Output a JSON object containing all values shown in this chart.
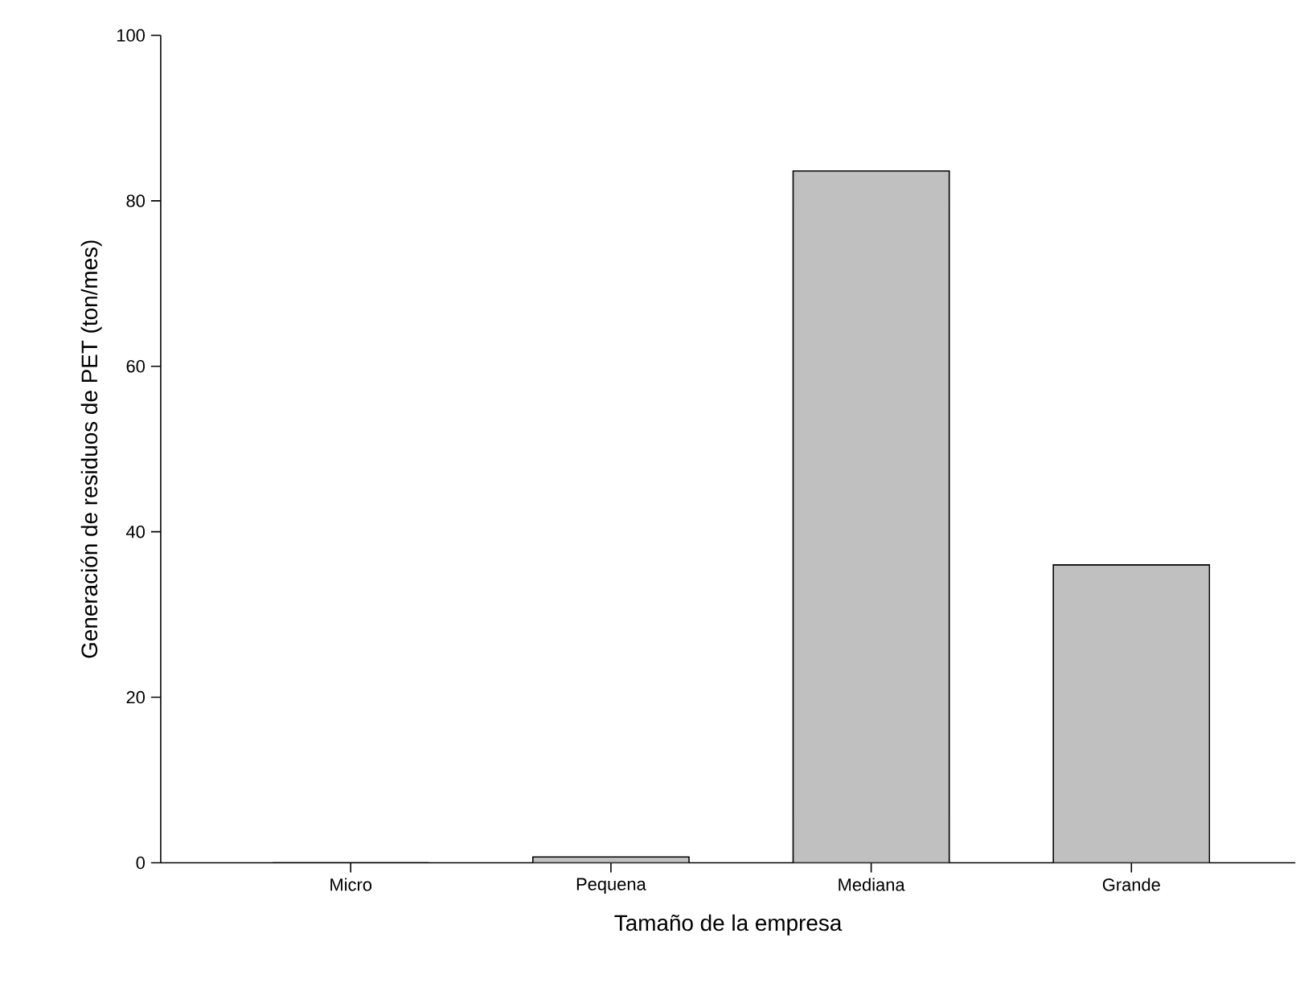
{
  "chart_data": {
    "type": "bar",
    "xlabel": "Tamaño de la empresa",
    "ylabel": "Generación de residuos de PET (ton/mes)",
    "categories": [
      "Micro",
      "Pequena",
      "Mediana",
      "Grande"
    ],
    "values": [
      0,
      0.7,
      83.6,
      36.0
    ],
    "color": "#c0c0c0",
    "ylim": [
      0,
      100
    ],
    "yticks": [
      0,
      20,
      40,
      60,
      80,
      100
    ]
  }
}
